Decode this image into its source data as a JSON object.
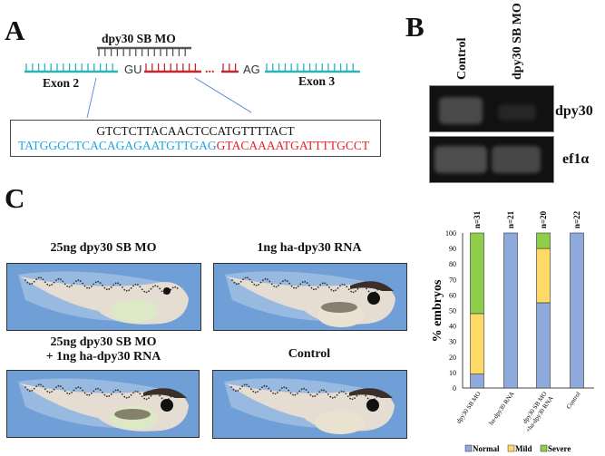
{
  "panel_a": {
    "label": "A",
    "mo_label": "dpy30 SB MO",
    "splice_donor": "GU",
    "splice_acceptor": "AG",
    "exon_left": "Exon 2",
    "exon_right": "Exon 3",
    "mo_sequence": "GTCTCTTACAACTCCATGTTTTACT",
    "exon_sequence": "TATGGGCTCACAGAGAATGTTGAG",
    "intron_sequence": "GTACAAAATGATTTTGCCT",
    "colors": {
      "exon": "#2ab3b8",
      "intron": "#c0282d",
      "mo": "#555555",
      "exon_seq": "#1fa6e0",
      "intron_seq": "#e8202a"
    }
  },
  "panel_b": {
    "label": "B",
    "lanes": [
      "Control",
      "dpy30 SB MO"
    ],
    "genes": [
      "dpy30",
      "ef1α"
    ]
  },
  "panel_c": {
    "label": "C",
    "images": [
      {
        "title_line1": "25ng dpy30 SB MO",
        "title_line2": ""
      },
      {
        "title_line1": "1ng ha-dpy30 RNA",
        "title_line2": ""
      },
      {
        "title_line1": "25ng dpy30 SB MO",
        "title_line2": "+ 1ng ha-dpy30 RNA"
      },
      {
        "title_line1": "Control",
        "title_line2": ""
      }
    ]
  },
  "chart_data": {
    "type": "bar",
    "stacked": true,
    "categories": [
      "dpy30 SB MO",
      "ha-dpy30 RNA",
      "dpy30 SB MO +ha-dpy30 RNA",
      "Control"
    ],
    "category_lines": [
      [
        "dpy30 SB MO"
      ],
      [
        "ha-dpy30 RNA"
      ],
      [
        "dpy30 SB MO",
        "+ha-dpy30 RNA"
      ],
      [
        "Control"
      ]
    ],
    "n_labels": [
      "n=31",
      "n=21",
      "n=20",
      "n=22"
    ],
    "series": [
      {
        "name": "Normal",
        "values": [
          9,
          100,
          55,
          100
        ],
        "color": "#8eaadb"
      },
      {
        "name": "Mild",
        "values": [
          39,
          0,
          35,
          0
        ],
        "color": "#ffd966"
      },
      {
        "name": "Severe",
        "values": [
          52,
          0,
          10,
          0
        ],
        "color": "#8fce4a"
      }
    ],
    "ylabel": "% embryos",
    "ylim": [
      0,
      100
    ],
    "yticks": [
      0,
      10,
      20,
      30,
      40,
      50,
      60,
      70,
      80,
      90,
      100
    ],
    "grid": false,
    "legend_position": "bottom"
  }
}
